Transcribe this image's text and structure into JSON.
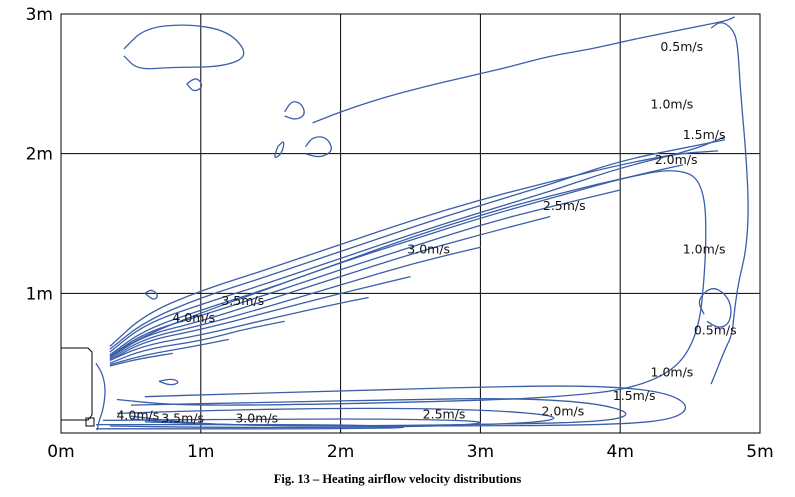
{
  "chart_data": {
    "type": "line",
    "subtype": "contour",
    "title": "",
    "caption": "Fig. 13 – Heating airflow velocity distributions",
    "xlabel": "",
    "ylabel": "",
    "xlim": [
      0,
      5
    ],
    "ylim": [
      0,
      3
    ],
    "grid": true,
    "x_ticks": [
      {
        "value": 0,
        "label": "0m"
      },
      {
        "value": 1,
        "label": "1m"
      },
      {
        "value": 2,
        "label": "2m"
      },
      {
        "value": 3,
        "label": "3m"
      },
      {
        "value": 4,
        "label": "4m"
      },
      {
        "value": 5,
        "label": "5m"
      }
    ],
    "y_ticks": [
      {
        "value": 1,
        "label": "1m"
      },
      {
        "value": 2,
        "label": "2m"
      },
      {
        "value": 3,
        "label": "3m"
      }
    ],
    "line_color": "#3a5fa8",
    "series": [
      {
        "x": [
          0.35,
          0.6,
          1.0,
          1.5,
          2.0,
          2.5,
          3.0,
          3.5,
          4.0,
          4.4,
          4.7
        ],
        "y": [
          0.62,
          0.85,
          1.02,
          1.18,
          1.35,
          1.52,
          1.67,
          1.8,
          1.92,
          2.0,
          2.02
        ]
      },
      {
        "x": [
          0.35,
          0.6,
          1.0,
          1.5,
          2.0,
          2.5,
          3.0,
          3.5,
          4.0,
          4.5,
          4.75
        ],
        "y": [
          0.6,
          0.8,
          0.97,
          1.13,
          1.3,
          1.47,
          1.63,
          1.78,
          1.95,
          2.05,
          2.1
        ]
      },
      {
        "x": [
          0.35,
          0.6,
          1.0,
          1.5,
          2.0,
          2.5,
          3.0,
          3.5,
          4.0,
          4.5,
          4.75
        ],
        "y": [
          0.58,
          0.78,
          0.92,
          1.08,
          1.25,
          1.42,
          1.58,
          1.73,
          1.9,
          2.02,
          2.12
        ]
      },
      {
        "x": [
          0.35,
          0.6,
          1.0,
          1.5,
          2.0,
          2.5,
          3.0,
          3.5,
          4.0,
          4.45
        ],
        "y": [
          0.56,
          0.74,
          0.88,
          1.04,
          1.22,
          1.38,
          1.54,
          1.68,
          1.82,
          1.92
        ]
      },
      {
        "x": [
          0.35,
          0.6,
          1.0,
          1.5,
          2.0,
          2.5,
          3.0,
          3.5,
          4.0
        ],
        "y": [
          0.55,
          0.72,
          0.84,
          1.0,
          1.17,
          1.33,
          1.49,
          1.62,
          1.74
        ]
      },
      {
        "x": [
          0.35,
          0.6,
          1.0,
          1.5,
          2.0,
          2.5,
          3.0,
          3.5
        ],
        "y": [
          0.54,
          0.7,
          0.8,
          0.96,
          1.12,
          1.28,
          1.42,
          1.55
        ]
      },
      {
        "x": [
          0.35,
          0.6,
          1.0,
          1.5,
          2.0,
          2.5,
          3.0
        ],
        "y": [
          0.53,
          0.68,
          0.77,
          0.91,
          1.06,
          1.21,
          1.33
        ]
      },
      {
        "x": [
          0.35,
          0.6,
          1.0,
          1.5,
          2.0,
          2.5
        ],
        "y": [
          0.52,
          0.66,
          0.74,
          0.87,
          1.0,
          1.12
        ]
      },
      {
        "x": [
          0.35,
          0.6,
          1.0,
          1.5,
          2.0,
          2.2
        ],
        "y": [
          0.52,
          0.63,
          0.7,
          0.82,
          0.93,
          0.97
        ]
      },
      {
        "x": [
          0.35,
          0.6,
          1.0,
          1.3,
          1.6
        ],
        "y": [
          0.5,
          0.6,
          0.66,
          0.74,
          0.8
        ]
      },
      {
        "x": [
          0.35,
          0.6,
          0.95,
          1.2
        ],
        "y": [
          0.49,
          0.56,
          0.62,
          0.67
        ]
      },
      {
        "x": [
          0.35,
          0.55,
          0.8
        ],
        "y": [
          0.48,
          0.53,
          0.57
        ]
      },
      {
        "x": [
          0.35,
          0.6,
          1.0,
          1.5,
          2.0,
          2.5,
          3.0,
          3.5,
          4.0,
          4.4,
          4.6,
          4.62,
          4.55,
          4.2,
          3.5,
          2.5,
          1.5,
          0.8,
          0.4
        ],
        "y": [
          0.55,
          0.7,
          0.86,
          1.04,
          1.22,
          1.4,
          1.56,
          1.7,
          1.82,
          1.9,
          1.8,
          1.3,
          0.6,
          0.33,
          0.25,
          0.22,
          0.2,
          0.2,
          0.24
        ]
      },
      {
        "x": [
          0.6,
          1.2,
          2.0,
          3.0,
          3.8,
          4.3,
          4.5,
          4.4,
          4.0,
          3.0,
          2.0,
          1.0,
          0.5
        ],
        "y": [
          0.26,
          0.28,
          0.3,
          0.33,
          0.34,
          0.3,
          0.2,
          0.1,
          0.06,
          0.05,
          0.05,
          0.06,
          0.1
        ]
      },
      {
        "x": [
          0.5,
          1.5,
          2.5,
          3.2,
          3.8,
          4.1,
          3.9,
          3.0,
          2.0,
          1.0,
          0.5
        ],
        "y": [
          0.2,
          0.22,
          0.24,
          0.25,
          0.22,
          0.14,
          0.08,
          0.06,
          0.05,
          0.06,
          0.12
        ]
      },
      {
        "x": [
          0.4,
          1.0,
          2.0,
          3.0,
          3.6,
          3.4,
          2.5,
          1.5,
          0.6
        ],
        "y": [
          0.14,
          0.16,
          0.18,
          0.17,
          0.12,
          0.07,
          0.05,
          0.05,
          0.08
        ]
      },
      {
        "x": [
          0.3,
          1.5,
          2.5,
          3.1,
          2.8,
          2.0,
          1.0,
          0.35
        ],
        "y": [
          0.09,
          0.1,
          0.1,
          0.08,
          0.05,
          0.04,
          0.04,
          0.05
        ]
      },
      {
        "x": [
          0.25,
          1.0,
          2.0,
          2.6,
          2.0,
          1.0,
          0.25
        ],
        "y": [
          0.06,
          0.06,
          0.06,
          0.04,
          0.03,
          0.03,
          0.03
        ]
      },
      {
        "x": [
          4.65,
          4.75,
          4.8,
          4.82,
          4.85,
          4.9,
          4.92,
          4.9,
          4.86,
          4.84,
          4.8,
          4.72,
          4.65
        ],
        "y": [
          0.35,
          0.6,
          0.7,
          0.9,
          1.1,
          1.3,
          1.6,
          2.0,
          2.45,
          2.8,
          2.9,
          2.95,
          2.9
        ]
      },
      {
        "x": [
          4.6,
          4.55,
          4.65,
          4.75,
          4.8,
          4.78,
          4.7,
          4.62
        ],
        "y": [
          0.85,
          0.95,
          1.05,
          1.0,
          0.9,
          0.78,
          0.75,
          0.8
        ]
      },
      {
        "x": [
          0.45,
          0.6,
          0.9,
          1.2,
          1.35,
          1.15,
          0.8,
          0.55,
          0.45
        ],
        "y": [
          2.75,
          2.9,
          2.93,
          2.88,
          2.7,
          2.62,
          2.62,
          2.6,
          2.7
        ]
      },
      {
        "x": [
          1.8,
          2.0,
          2.3,
          2.6,
          2.9,
          3.2,
          3.5,
          3.8,
          4.1,
          4.4,
          4.6,
          4.75,
          4.8,
          4.82
        ],
        "y": [
          2.22,
          2.3,
          2.4,
          2.48,
          2.55,
          2.62,
          2.7,
          2.75,
          2.82,
          2.88,
          2.92,
          2.95,
          2.97,
          2.98
        ]
      },
      {
        "x": [
          1.75,
          1.8,
          1.9,
          1.95,
          1.85,
          1.75
        ],
        "y": [
          2.05,
          2.12,
          2.12,
          2.02,
          1.97,
          2.0
        ]
      },
      {
        "x": [
          1.6,
          1.65,
          1.72,
          1.75,
          1.68,
          1.6
        ],
        "y": [
          2.3,
          2.38,
          2.36,
          2.28,
          2.24,
          2.27
        ]
      },
      {
        "x": [
          0.9,
          0.97,
          1.02,
          0.95,
          0.9
        ],
        "y": [
          2.5,
          2.55,
          2.48,
          2.44,
          2.5
        ]
      },
      {
        "x": [
          1.55,
          1.6,
          1.58,
          1.52,
          1.55
        ],
        "y": [
          2.05,
          2.1,
          2.0,
          1.96,
          2.05
        ]
      },
      {
        "x": [
          0.6,
          0.65,
          0.7,
          0.66,
          0.6
        ],
        "y": [
          1.0,
          1.03,
          0.98,
          0.95,
          1.0
        ]
      },
      {
        "x": [
          0.7,
          0.8,
          0.85,
          0.78,
          0.7
        ],
        "y": [
          0.37,
          0.39,
          0.36,
          0.34,
          0.37
        ]
      },
      {
        "x": [
          0.25,
          0.3,
          0.32,
          0.3,
          0.27,
          0.26
        ],
        "y": [
          0.5,
          0.42,
          0.3,
          0.16,
          0.08,
          0.02
        ]
      }
    ],
    "labels": [
      {
        "text": "0.5m/s",
        "x": 4.44,
        "y": 2.76
      },
      {
        "text": "1.0m/s",
        "x": 4.37,
        "y": 2.35
      },
      {
        "text": "1.5m/s",
        "x": 4.6,
        "y": 2.13
      },
      {
        "text": "2.0m/s",
        "x": 4.4,
        "y": 1.95
      },
      {
        "text": "2.5m/s",
        "x": 3.6,
        "y": 1.62
      },
      {
        "text": "3.0m/s",
        "x": 2.63,
        "y": 1.31
      },
      {
        "text": "1.0m/s",
        "x": 4.6,
        "y": 1.31
      },
      {
        "text": "3.5m/s",
        "x": 1.3,
        "y": 0.94
      },
      {
        "text": "4.0m/s",
        "x": 0.95,
        "y": 0.82
      },
      {
        "text": "0.5m/s",
        "x": 4.68,
        "y": 0.73
      },
      {
        "text": "1.0m/s",
        "x": 4.37,
        "y": 0.43
      },
      {
        "text": "1.5m/s",
        "x": 4.1,
        "y": 0.26
      },
      {
        "text": "2.0m/s",
        "x": 3.59,
        "y": 0.15
      },
      {
        "text": "2.5m/s",
        "x": 2.74,
        "y": 0.13
      },
      {
        "text": "3.0m/s",
        "x": 1.4,
        "y": 0.1
      },
      {
        "text": "3.5m/s",
        "x": 0.87,
        "y": 0.1
      },
      {
        "text": "4.0m/s",
        "x": 0.55,
        "y": 0.12
      }
    ]
  }
}
